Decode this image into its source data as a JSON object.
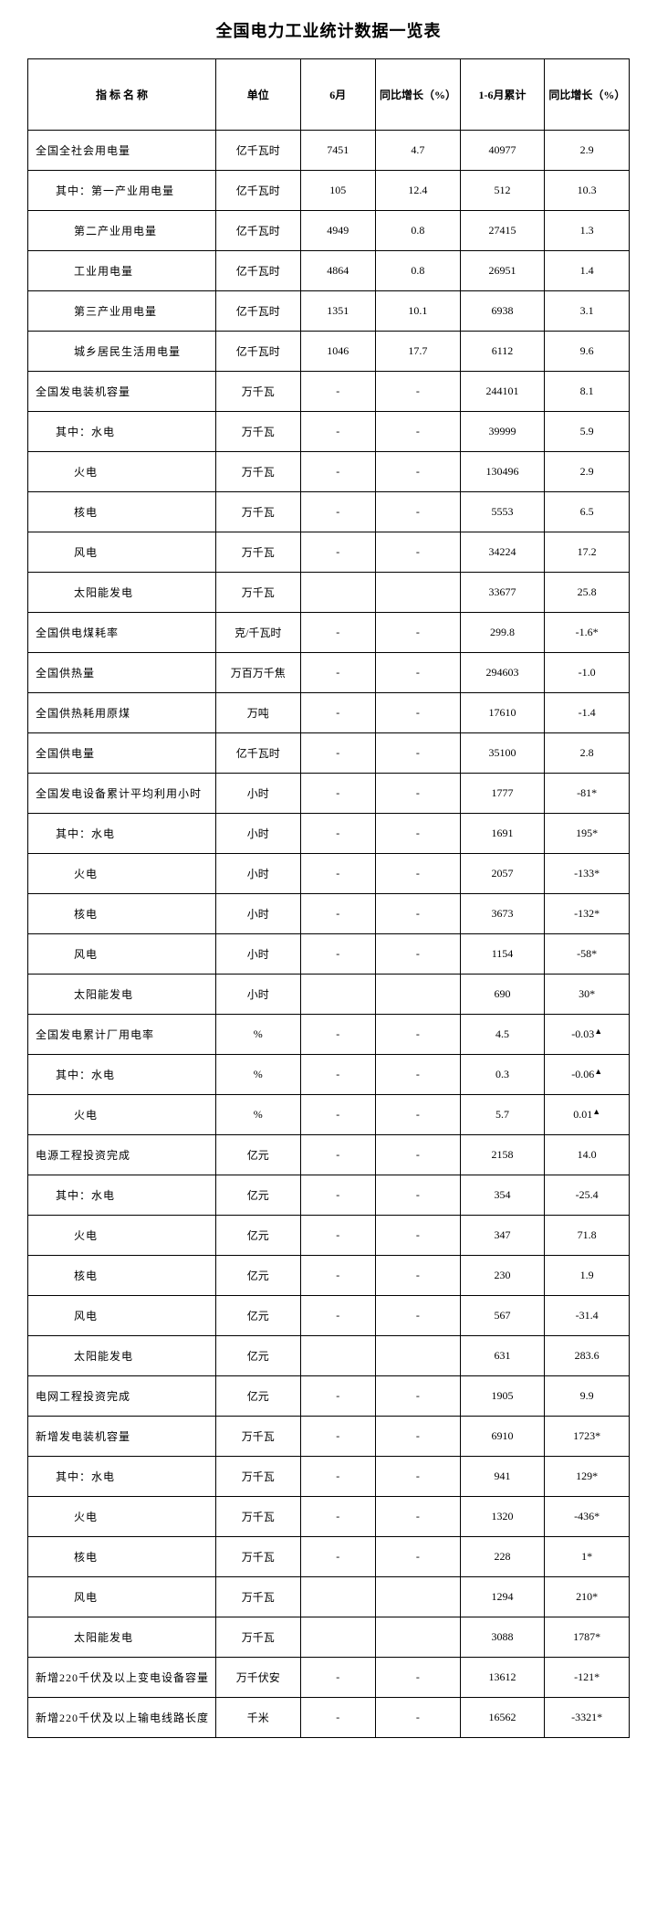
{
  "title": "全国电力工业统计数据一览表",
  "columns": {
    "name": "指 标  名 称",
    "unit": "单位",
    "month": "6月",
    "growth1": "同比增长（%）",
    "cumulative": "1-6月累计",
    "growth2": "同比增长（%）"
  },
  "rows": [
    {
      "name": "全国全社会用电量",
      "indent": 0,
      "unit": "亿千瓦时",
      "month": "7451",
      "g1": "4.7",
      "cum": "40977",
      "g2": "2.9"
    },
    {
      "name": "其中：第一产业用电量",
      "indent": 1,
      "unit": "亿千瓦时",
      "month": "105",
      "g1": "12.4",
      "cum": "512",
      "g2": "10.3"
    },
    {
      "name": "第二产业用电量",
      "indent": 2,
      "unit": "亿千瓦时",
      "month": "4949",
      "g1": "0.8",
      "cum": "27415",
      "g2": "1.3"
    },
    {
      "name": "工业用电量",
      "indent": 2,
      "unit": "亿千瓦时",
      "month": "4864",
      "g1": "0.8",
      "cum": "26951",
      "g2": "1.4"
    },
    {
      "name": "第三产业用电量",
      "indent": 2,
      "unit": "亿千瓦时",
      "month": "1351",
      "g1": "10.1",
      "cum": "6938",
      "g2": "3.1"
    },
    {
      "name": "城乡居民生活用电量",
      "indent": 2,
      "unit": "亿千瓦时",
      "month": "1046",
      "g1": "17.7",
      "cum": "6112",
      "g2": "9.6"
    },
    {
      "name": "全国发电装机容量",
      "indent": 0,
      "unit": "万千瓦",
      "month": "-",
      "g1": "-",
      "cum": "244101",
      "g2": "8.1"
    },
    {
      "name": "其中：水电",
      "indent": 1,
      "unit": "万千瓦",
      "month": "-",
      "g1": "-",
      "cum": "39999",
      "g2": "5.9"
    },
    {
      "name": "火电",
      "indent": 2,
      "unit": "万千瓦",
      "month": "-",
      "g1": "-",
      "cum": "130496",
      "g2": "2.9"
    },
    {
      "name": "核电",
      "indent": 2,
      "unit": "万千瓦",
      "month": "-",
      "g1": "-",
      "cum": "5553",
      "g2": "6.5"
    },
    {
      "name": "风电",
      "indent": 2,
      "unit": "万千瓦",
      "month": "-",
      "g1": "-",
      "cum": "34224",
      "g2": "17.2"
    },
    {
      "name": "太阳能发电",
      "indent": 2,
      "unit": "万千瓦",
      "month": "",
      "g1": "",
      "cum": "33677",
      "g2": "25.8"
    },
    {
      "name": "全国供电煤耗率",
      "indent": 0,
      "unit": "克/千瓦时",
      "month": "-",
      "g1": "-",
      "cum": "299.8",
      "g2": "-1.6*"
    },
    {
      "name": "全国供热量",
      "indent": 0,
      "unit": "万百万千焦",
      "month": "-",
      "g1": "-",
      "cum": "294603",
      "g2": "-1.0"
    },
    {
      "name": "全国供热耗用原煤",
      "indent": 0,
      "unit": "万吨",
      "month": "-",
      "g1": "-",
      "cum": "17610",
      "g2": "-1.4"
    },
    {
      "name": "全国供电量",
      "indent": 0,
      "unit": "亿千瓦时",
      "month": "-",
      "g1": "-",
      "cum": "35100",
      "g2": "2.8"
    },
    {
      "name": "全国发电设备累计平均利用小时",
      "indent": 0,
      "unit": "小时",
      "month": "-",
      "g1": "-",
      "cum": "1777",
      "g2": "-81*"
    },
    {
      "name": "其中：水电",
      "indent": 1,
      "unit": "小时",
      "month": "-",
      "g1": "-",
      "cum": "1691",
      "g2": "195*"
    },
    {
      "name": "火电",
      "indent": 2,
      "unit": "小时",
      "month": "-",
      "g1": "-",
      "cum": "2057",
      "g2": "-133*"
    },
    {
      "name": "核电",
      "indent": 2,
      "unit": "小时",
      "month": "-",
      "g1": "-",
      "cum": "3673",
      "g2": "-132*"
    },
    {
      "name": "风电",
      "indent": 2,
      "unit": "小时",
      "month": "-",
      "g1": "-",
      "cum": "1154",
      "g2": "-58*"
    },
    {
      "name": "太阳能发电",
      "indent": 2,
      "unit": "小时",
      "month": "",
      "g1": "",
      "cum": "690",
      "g2": "30*"
    },
    {
      "name": "全国发电累计厂用电率",
      "indent": 0,
      "unit": "%",
      "month": "-",
      "g1": "-",
      "cum": "4.5",
      "g2": "-0.03▲"
    },
    {
      "name": "其中：水电",
      "indent": 1,
      "unit": "%",
      "month": "-",
      "g1": "-",
      "cum": "0.3",
      "g2": "-0.06▲"
    },
    {
      "name": "火电",
      "indent": 2,
      "unit": "%",
      "month": "-",
      "g1": "-",
      "cum": "5.7",
      "g2": "0.01▲"
    },
    {
      "name": "电源工程投资完成",
      "indent": 0,
      "unit": "亿元",
      "month": "-",
      "g1": "-",
      "cum": "2158",
      "g2": "14.0"
    },
    {
      "name": "其中：水电",
      "indent": 1,
      "unit": "亿元",
      "month": "-",
      "g1": "-",
      "cum": "354",
      "g2": "-25.4"
    },
    {
      "name": "火电",
      "indent": 2,
      "unit": "亿元",
      "month": "-",
      "g1": "-",
      "cum": "347",
      "g2": "71.8"
    },
    {
      "name": "核电",
      "indent": 2,
      "unit": "亿元",
      "month": "-",
      "g1": "-",
      "cum": "230",
      "g2": "1.9"
    },
    {
      "name": "风电",
      "indent": 2,
      "unit": "亿元",
      "month": "-",
      "g1": "-",
      "cum": "567",
      "g2": "-31.4"
    },
    {
      "name": "太阳能发电",
      "indent": 2,
      "unit": "亿元",
      "month": "",
      "g1": "",
      "cum": "631",
      "g2": "283.6"
    },
    {
      "name": "电网工程投资完成",
      "indent": 0,
      "unit": "亿元",
      "month": "-",
      "g1": "-",
      "cum": "1905",
      "g2": "9.9"
    },
    {
      "name": "新增发电装机容量",
      "indent": 0,
      "unit": "万千瓦",
      "month": "-",
      "g1": "-",
      "cum": "6910",
      "g2": "1723*"
    },
    {
      "name": "其中：水电",
      "indent": 1,
      "unit": "万千瓦",
      "month": "-",
      "g1": "-",
      "cum": "941",
      "g2": "129*"
    },
    {
      "name": "火电",
      "indent": 2,
      "unit": "万千瓦",
      "month": "-",
      "g1": "-",
      "cum": "1320",
      "g2": "-436*"
    },
    {
      "name": "核电",
      "indent": 2,
      "unit": "万千瓦",
      "month": "-",
      "g1": "-",
      "cum": "228",
      "g2": "1*"
    },
    {
      "name": "风电",
      "indent": 2,
      "unit": "万千瓦",
      "month": "",
      "g1": "",
      "cum": "1294",
      "g2": "210*"
    },
    {
      "name": "太阳能发电",
      "indent": 2,
      "unit": "万千瓦",
      "month": "",
      "g1": "",
      "cum": "3088",
      "g2": "1787*"
    },
    {
      "name": "新增220千伏及以上变电设备容量",
      "indent": 0,
      "unit": "万千伏安",
      "month": "-",
      "g1": "-",
      "cum": "13612",
      "g2": "-121*"
    },
    {
      "name": "新增220千伏及以上输电线路长度",
      "indent": 0,
      "unit": "千米",
      "month": "-",
      "g1": "-",
      "cum": "16562",
      "g2": "-3321*"
    }
  ],
  "style": {
    "bg": "#ffffff",
    "border": "#000000",
    "title_fontsize": 18,
    "cell_fontsize": 12,
    "font_family": "SimSun"
  }
}
